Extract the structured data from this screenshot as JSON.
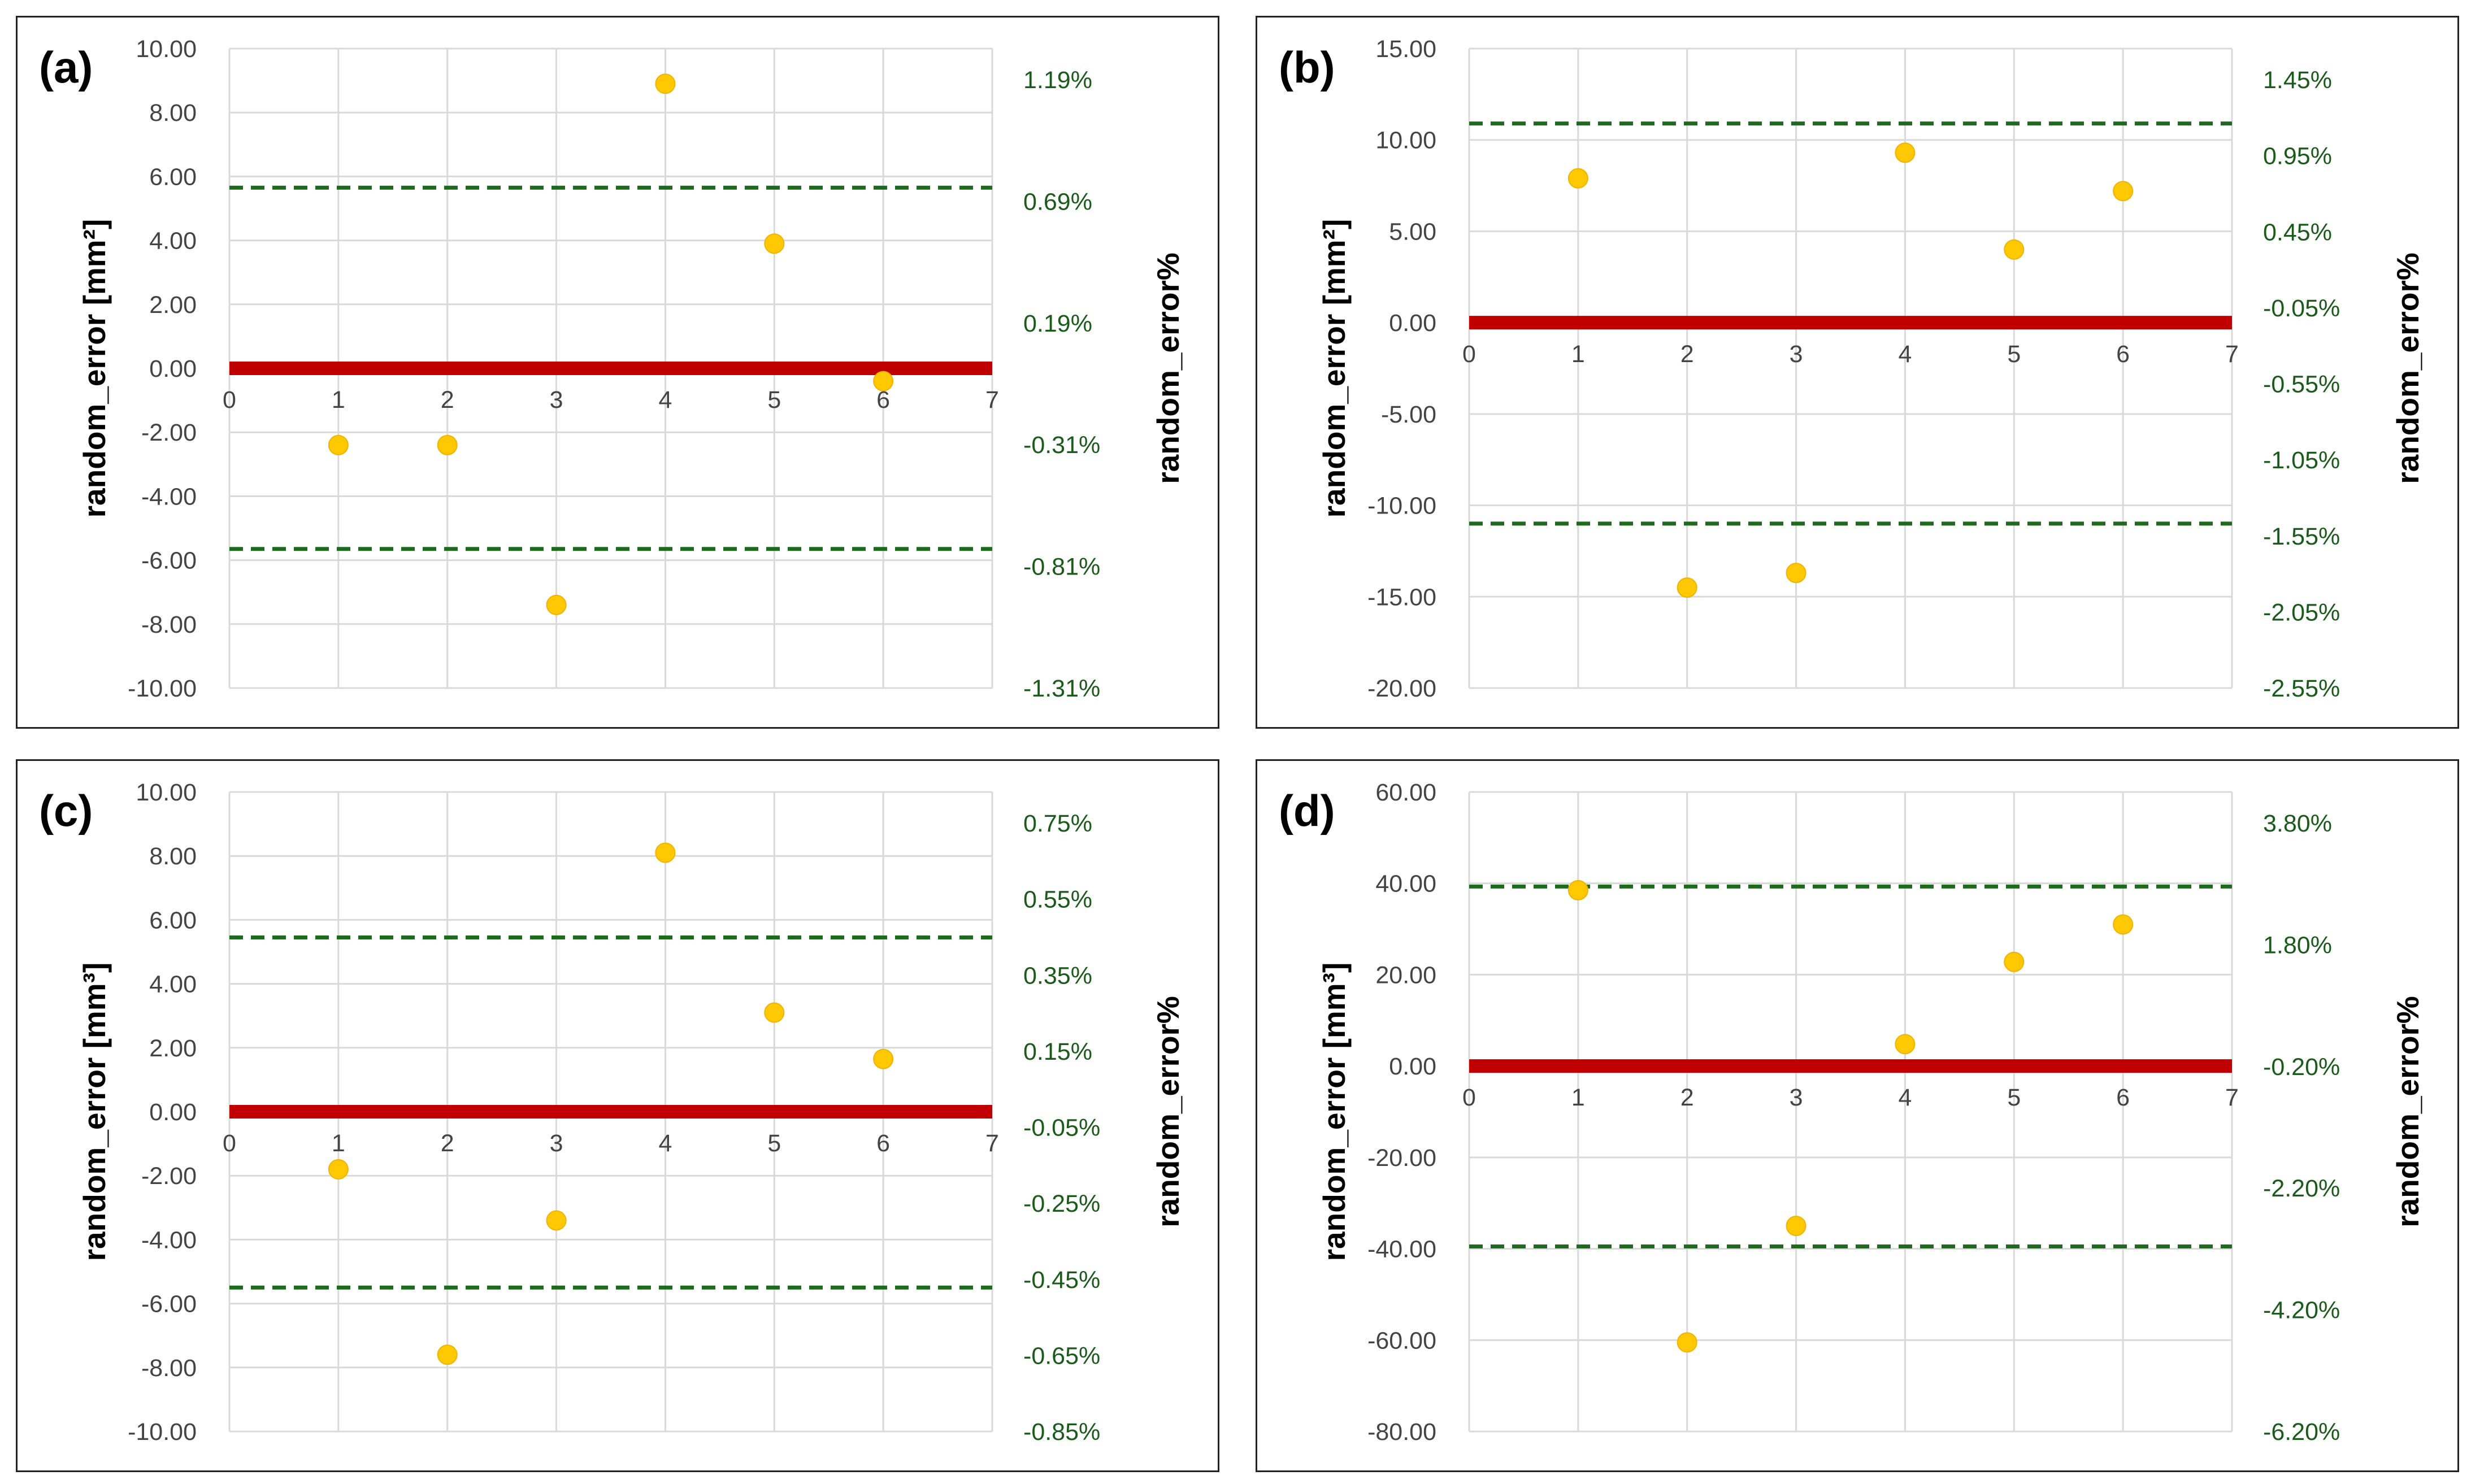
{
  "colors": {
    "zero_line": "#c00000",
    "limit_line": "#1e6b1e",
    "points": "#ffc800",
    "grid": "#d9d9d9"
  },
  "chart_data": [
    {
      "id": "a",
      "panel_label": "(a)",
      "type": "scatter",
      "ylabel": "random_error [mm²]",
      "y2label": "random_error%",
      "xlim": [
        0,
        7
      ],
      "ylim": [
        -10,
        10
      ],
      "x_ticks": [
        "0",
        "1",
        "2",
        "3",
        "4",
        "5",
        "6",
        "7"
      ],
      "y_ticks": [
        "10.00",
        "8.00",
        "6.00",
        "4.00",
        "2.00",
        "0.00",
        "-2.00",
        "-4.00",
        "-6.00",
        "-8.00",
        "-10.00"
      ],
      "y2_ticks": [
        "1.19%",
        "0.69%",
        "0.19%",
        "-0.31%",
        "-0.81%",
        "-1.31%"
      ],
      "points": [
        {
          "x": 1,
          "y": -2.4
        },
        {
          "x": 2,
          "y": -2.4
        },
        {
          "x": 3,
          "y": -7.4
        },
        {
          "x": 4,
          "y": 8.9
        },
        {
          "x": 5,
          "y": 3.9
        },
        {
          "x": 6,
          "y": -0.4
        }
      ],
      "zero_line": 0,
      "limits": [
        5.65,
        -5.65
      ]
    },
    {
      "id": "b",
      "panel_label": "(b)",
      "type": "scatter",
      "ylabel": "random_error [mm²]",
      "y2label": "random_error%",
      "xlim": [
        0,
        7
      ],
      "ylim": [
        -20,
        15
      ],
      "x_ticks": [
        "0",
        "1",
        "2",
        "3",
        "4",
        "5",
        "6",
        "7"
      ],
      "y_ticks": [
        "15.00",
        "10.00",
        "5.00",
        "0.00",
        "-5.00",
        "-10.00",
        "-15.00",
        "-20.00"
      ],
      "y2_ticks": [
        "1.45%",
        "0.95%",
        "0.45%",
        "-0.05%",
        "-0.55%",
        "-1.05%",
        "-1.55%",
        "-2.05%",
        "-2.55%"
      ],
      "points": [
        {
          "x": 1,
          "y": 7.9
        },
        {
          "x": 2,
          "y": -14.5
        },
        {
          "x": 3,
          "y": -13.7
        },
        {
          "x": 4,
          "y": 9.3
        },
        {
          "x": 5,
          "y": 4.0
        },
        {
          "x": 6,
          "y": 7.2
        }
      ],
      "zero_line": 0,
      "limits": [
        10.9,
        -11.0
      ]
    },
    {
      "id": "c",
      "panel_label": "(c)",
      "type": "scatter",
      "ylabel": "random_error [mm³]",
      "y2label": "random_error%",
      "xlim": [
        0,
        7
      ],
      "ylim": [
        -10,
        10
      ],
      "x_ticks": [
        "0",
        "1",
        "2",
        "3",
        "4",
        "5",
        "6",
        "7"
      ],
      "y_ticks": [
        "10.00",
        "8.00",
        "6.00",
        "4.00",
        "2.00",
        "0.00",
        "-2.00",
        "-4.00",
        "-6.00",
        "-8.00",
        "-10.00"
      ],
      "y2_ticks": [
        "0.75%",
        "0.55%",
        "0.35%",
        "0.15%",
        "-0.05%",
        "-0.25%",
        "-0.45%",
        "-0.65%",
        "-0.85%"
      ],
      "points": [
        {
          "x": 1,
          "y": -1.8
        },
        {
          "x": 2,
          "y": -7.6
        },
        {
          "x": 3,
          "y": -3.4
        },
        {
          "x": 4,
          "y": 8.1
        },
        {
          "x": 5,
          "y": 3.1
        },
        {
          "x": 6,
          "y": 1.65
        }
      ],
      "zero_line": 0,
      "limits": [
        5.45,
        -5.5
      ]
    },
    {
      "id": "d",
      "panel_label": "(d)",
      "type": "scatter",
      "ylabel": "random_error [mm³]",
      "y2label": "random_error%",
      "xlim": [
        0,
        7
      ],
      "ylim": [
        -80,
        60
      ],
      "x_ticks": [
        "0",
        "1",
        "2",
        "3",
        "4",
        "5",
        "6",
        "7"
      ],
      "y_ticks": [
        "60.00",
        "40.00",
        "20.00",
        "0.00",
        "-20.00",
        "-40.00",
        "-60.00",
        "-80.00"
      ],
      "y2_ticks": [
        "3.80%",
        "1.80%",
        "-0.20%",
        "-2.20%",
        "-4.20%",
        "-6.20%"
      ],
      "points": [
        {
          "x": 1,
          "y": 38.5
        },
        {
          "x": 2,
          "y": -60.5
        },
        {
          "x": 3,
          "y": -35
        },
        {
          "x": 4,
          "y": 4.8
        },
        {
          "x": 5,
          "y": 22.8
        },
        {
          "x": 6,
          "y": 31
        }
      ],
      "zero_line": 0,
      "limits": [
        39.3,
        -39.5
      ]
    }
  ]
}
